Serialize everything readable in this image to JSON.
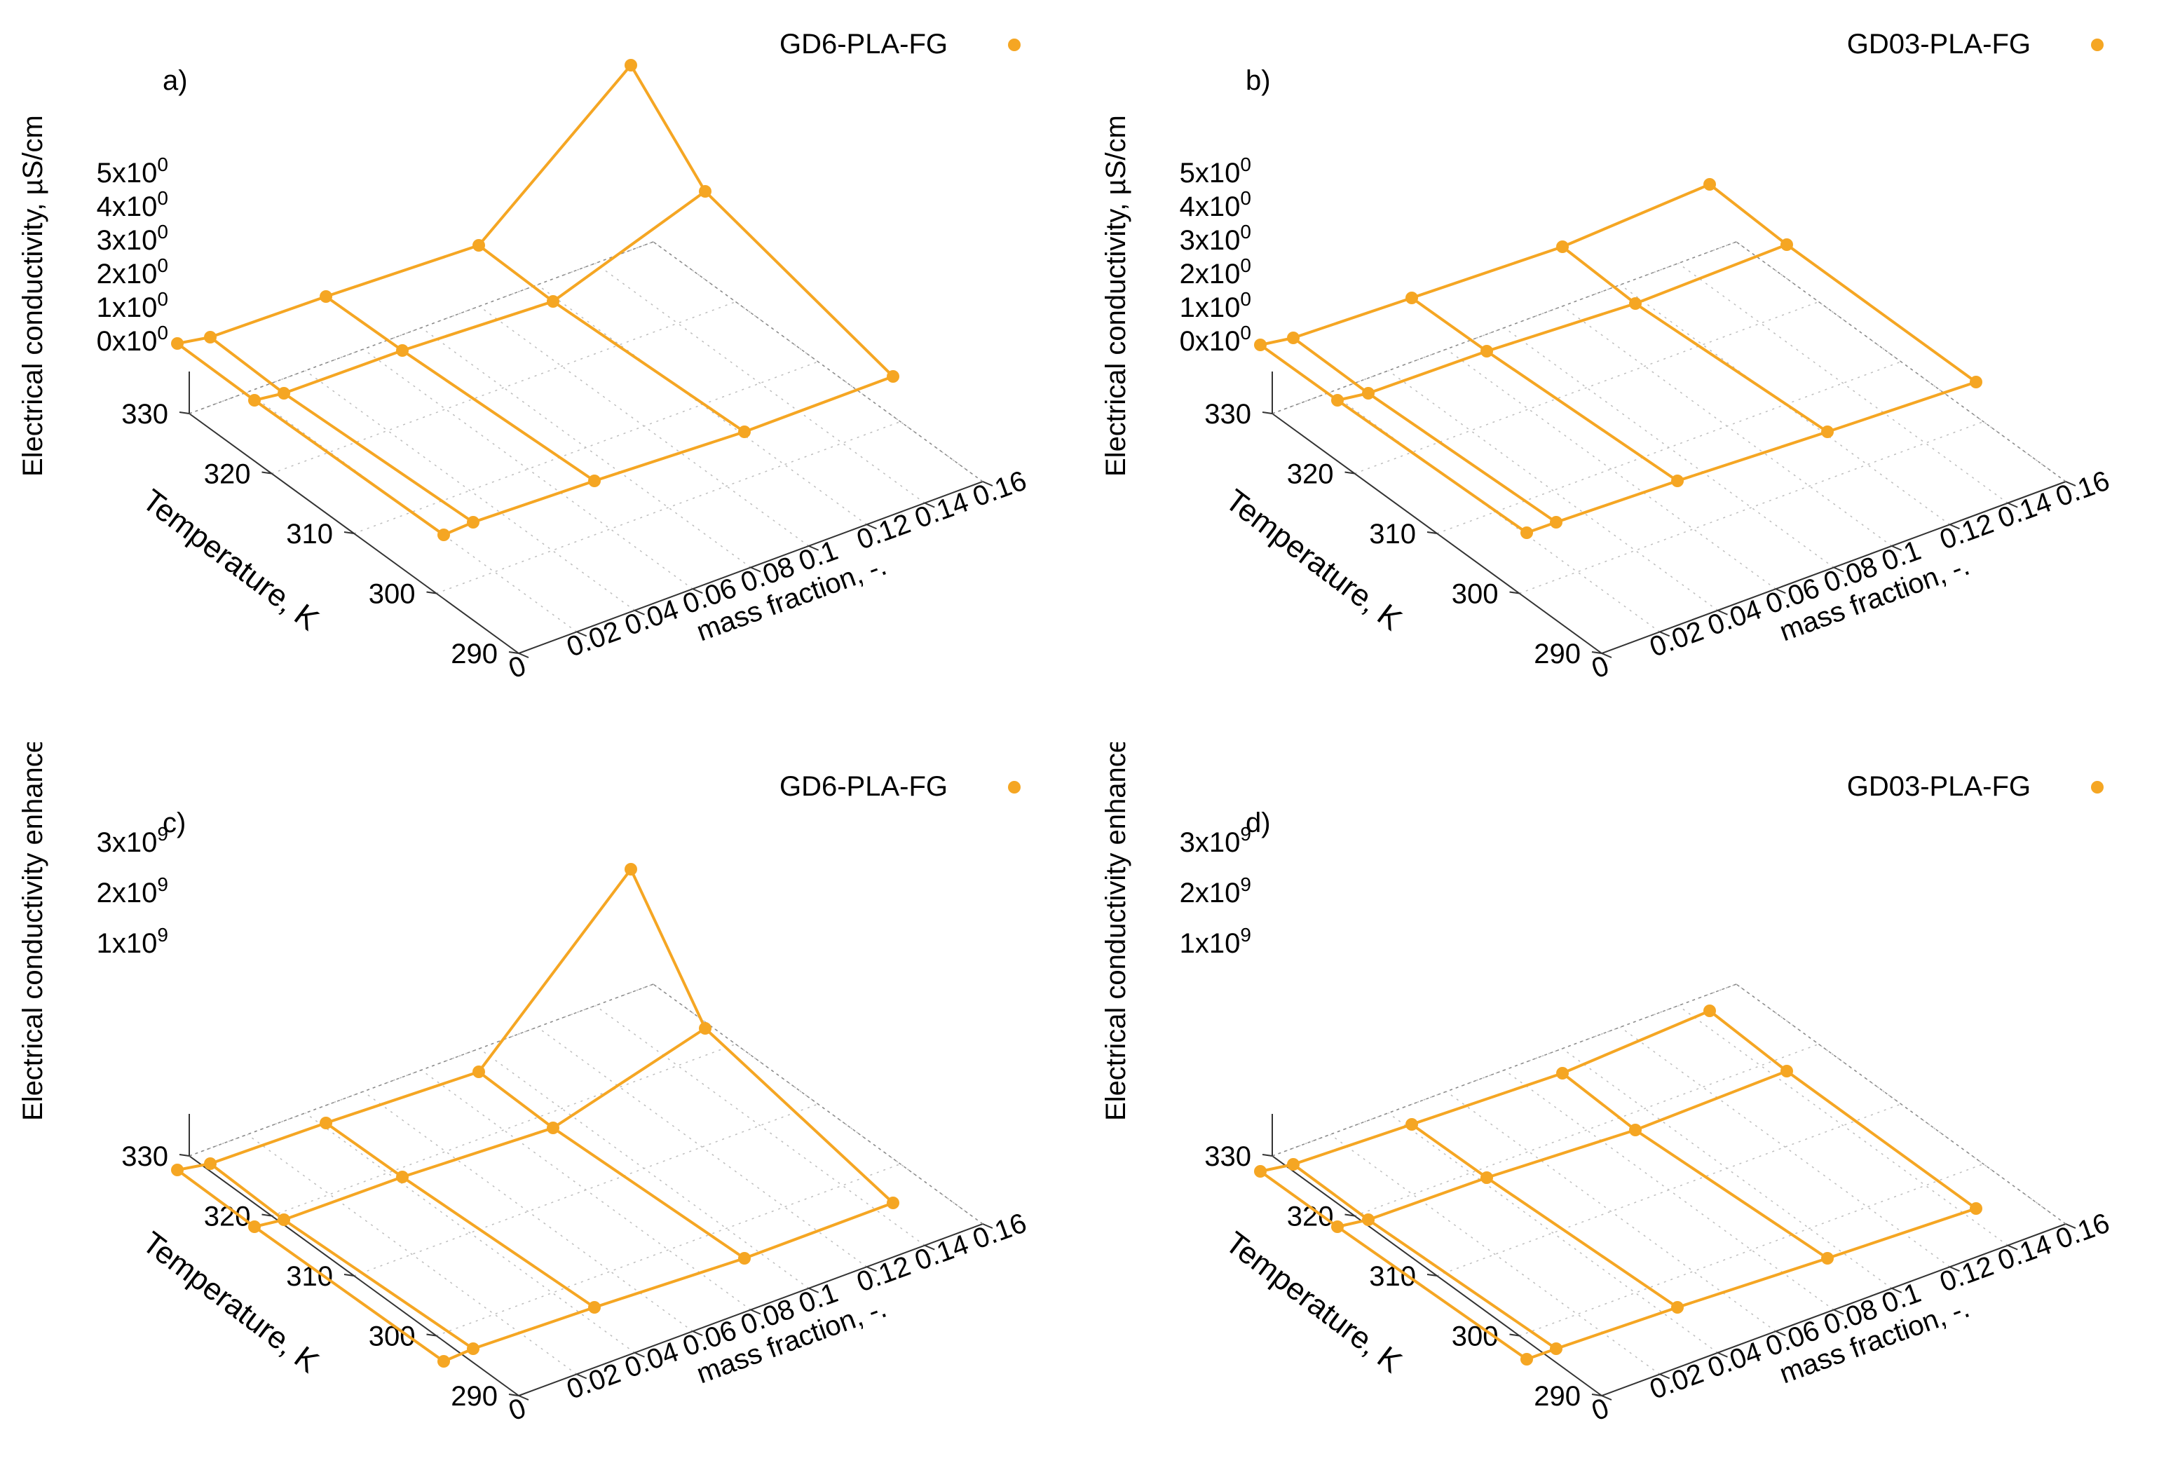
{
  "chart_data": [
    {
      "type": "surface",
      "panel_label": "a)",
      "legend": "GD6-PLA-FG",
      "zlabel": "Electrical conductivity, µS/cm",
      "xlabel": "mass fraction, -.",
      "ylabel": "Temperature, K",
      "x_ticks": [
        "0",
        "0.02",
        "0.04",
        "0.06",
        "0.08",
        "0.1",
        "0.12",
        "0.14",
        "0.16"
      ],
      "y_ticks": [
        "290",
        "300",
        "310",
        "320",
        "330"
      ],
      "z_ticks": [
        {
          "base": "0x10",
          "exp": "0"
        },
        {
          "base": "1x10",
          "exp": "0"
        },
        {
          "base": "2x10",
          "exp": "0"
        },
        {
          "base": "3x10",
          "exp": "0"
        },
        {
          "base": "4x10",
          "exp": "0"
        },
        {
          "base": "5x10",
          "exp": "0"
        }
      ],
      "series_color": "#f5a623",
      "mass_fraction": [
        0,
        0.01,
        0.05,
        0.1,
        0.15
      ],
      "temperature": [
        293,
        313,
        333
      ],
      "conductivity_approx": [
        [
          0,
          0,
          0,
          0,
          0
        ],
        [
          0,
          0,
          0.3,
          1.2,
          3.5
        ],
        [
          0,
          0.3,
          1.0,
          2.3,
          8.0
        ]
      ]
    },
    {
      "type": "surface",
      "panel_label": "b)",
      "legend": "GD03-PLA-FG",
      "zlabel": "Electrical conductivity, µS/cm",
      "xlabel": "mass fraction, -.",
      "ylabel": "Temperature, K",
      "x_ticks": [
        "0",
        "0.02",
        "0.04",
        "0.06",
        "0.08",
        "0.1",
        "0.12",
        "0.14",
        "0.16"
      ],
      "y_ticks": [
        "290",
        "300",
        "310",
        "320",
        "330"
      ],
      "z_ticks": [
        {
          "base": "0x10",
          "exp": "0"
        },
        {
          "base": "1x10",
          "exp": "0"
        },
        {
          "base": "2x10",
          "exp": "0"
        },
        {
          "base": "3x10",
          "exp": "0"
        },
        {
          "base": "4x10",
          "exp": "0"
        },
        {
          "base": "5x10",
          "exp": "0"
        }
      ],
      "series_color": "#f5a623",
      "mass_fraction": [
        0,
        0.01,
        0.05,
        0.1,
        0.15
      ],
      "temperature": [
        293,
        313,
        333
      ],
      "conductivity_approx": [
        [
          0,
          0,
          0,
          0,
          0
        ],
        [
          0,
          0,
          0.3,
          1.0,
          1.6
        ],
        [
          0,
          0.3,
          1.0,
          2.1,
          3.4
        ]
      ]
    },
    {
      "type": "surface",
      "panel_label": "c)",
      "legend": "GD6-PLA-FG",
      "zlabel": "Electrical conductivity enhancement, -",
      "xlabel": "mass fraction, -.",
      "ylabel": "Temperature, K",
      "x_ticks": [
        "0",
        "0.02",
        "0.04",
        "0.06",
        "0.08",
        "0.1",
        "0.12",
        "0.14",
        "0.16"
      ],
      "y_ticks": [
        "290",
        "300",
        "310",
        "320",
        "330"
      ],
      "z_ticks": [
        {
          "base": "1x10",
          "exp": "9"
        },
        {
          "base": "2x10",
          "exp": "9"
        },
        {
          "base": "3x10",
          "exp": "9"
        }
      ],
      "series_color": "#f5a623",
      "mass_fraction": [
        0,
        0.01,
        0.05,
        0.1,
        0.15
      ],
      "temperature": [
        293,
        313,
        333
      ],
      "enhancement_approx": [
        [
          0,
          0,
          0,
          0,
          0
        ],
        [
          0,
          0,
          0.2,
          0.8,
          2.3
        ],
        [
          0,
          0.2,
          0.65,
          1.5,
          5.3
        ]
      ]
    },
    {
      "type": "surface",
      "panel_label": "d)",
      "legend": "GD03-PLA-FG",
      "zlabel": "Electrical conductivity enhancement, -",
      "xlabel": "mass fraction, -.",
      "ylabel": "Temperature, K",
      "x_ticks": [
        "0",
        "0.02",
        "0.04",
        "0.06",
        "0.08",
        "0.1",
        "0.12",
        "0.14",
        "0.16"
      ],
      "y_ticks": [
        "290",
        "300",
        "310",
        "320",
        "330"
      ],
      "z_ticks": [
        {
          "base": "1x10",
          "exp": "9"
        },
        {
          "base": "2x10",
          "exp": "9"
        },
        {
          "base": "3x10",
          "exp": "9"
        }
      ],
      "series_color": "#f5a623",
      "mass_fraction": [
        0,
        0.01,
        0.05,
        0.1,
        0.15
      ],
      "temperature": [
        293,
        313,
        333
      ],
      "enhancement_approx": [
        [
          0,
          0,
          0,
          0,
          0
        ],
        [
          0,
          0,
          0.2,
          0.75,
          1.2
        ],
        [
          0,
          0.2,
          0.65,
          1.4,
          2.3
        ]
      ]
    }
  ]
}
